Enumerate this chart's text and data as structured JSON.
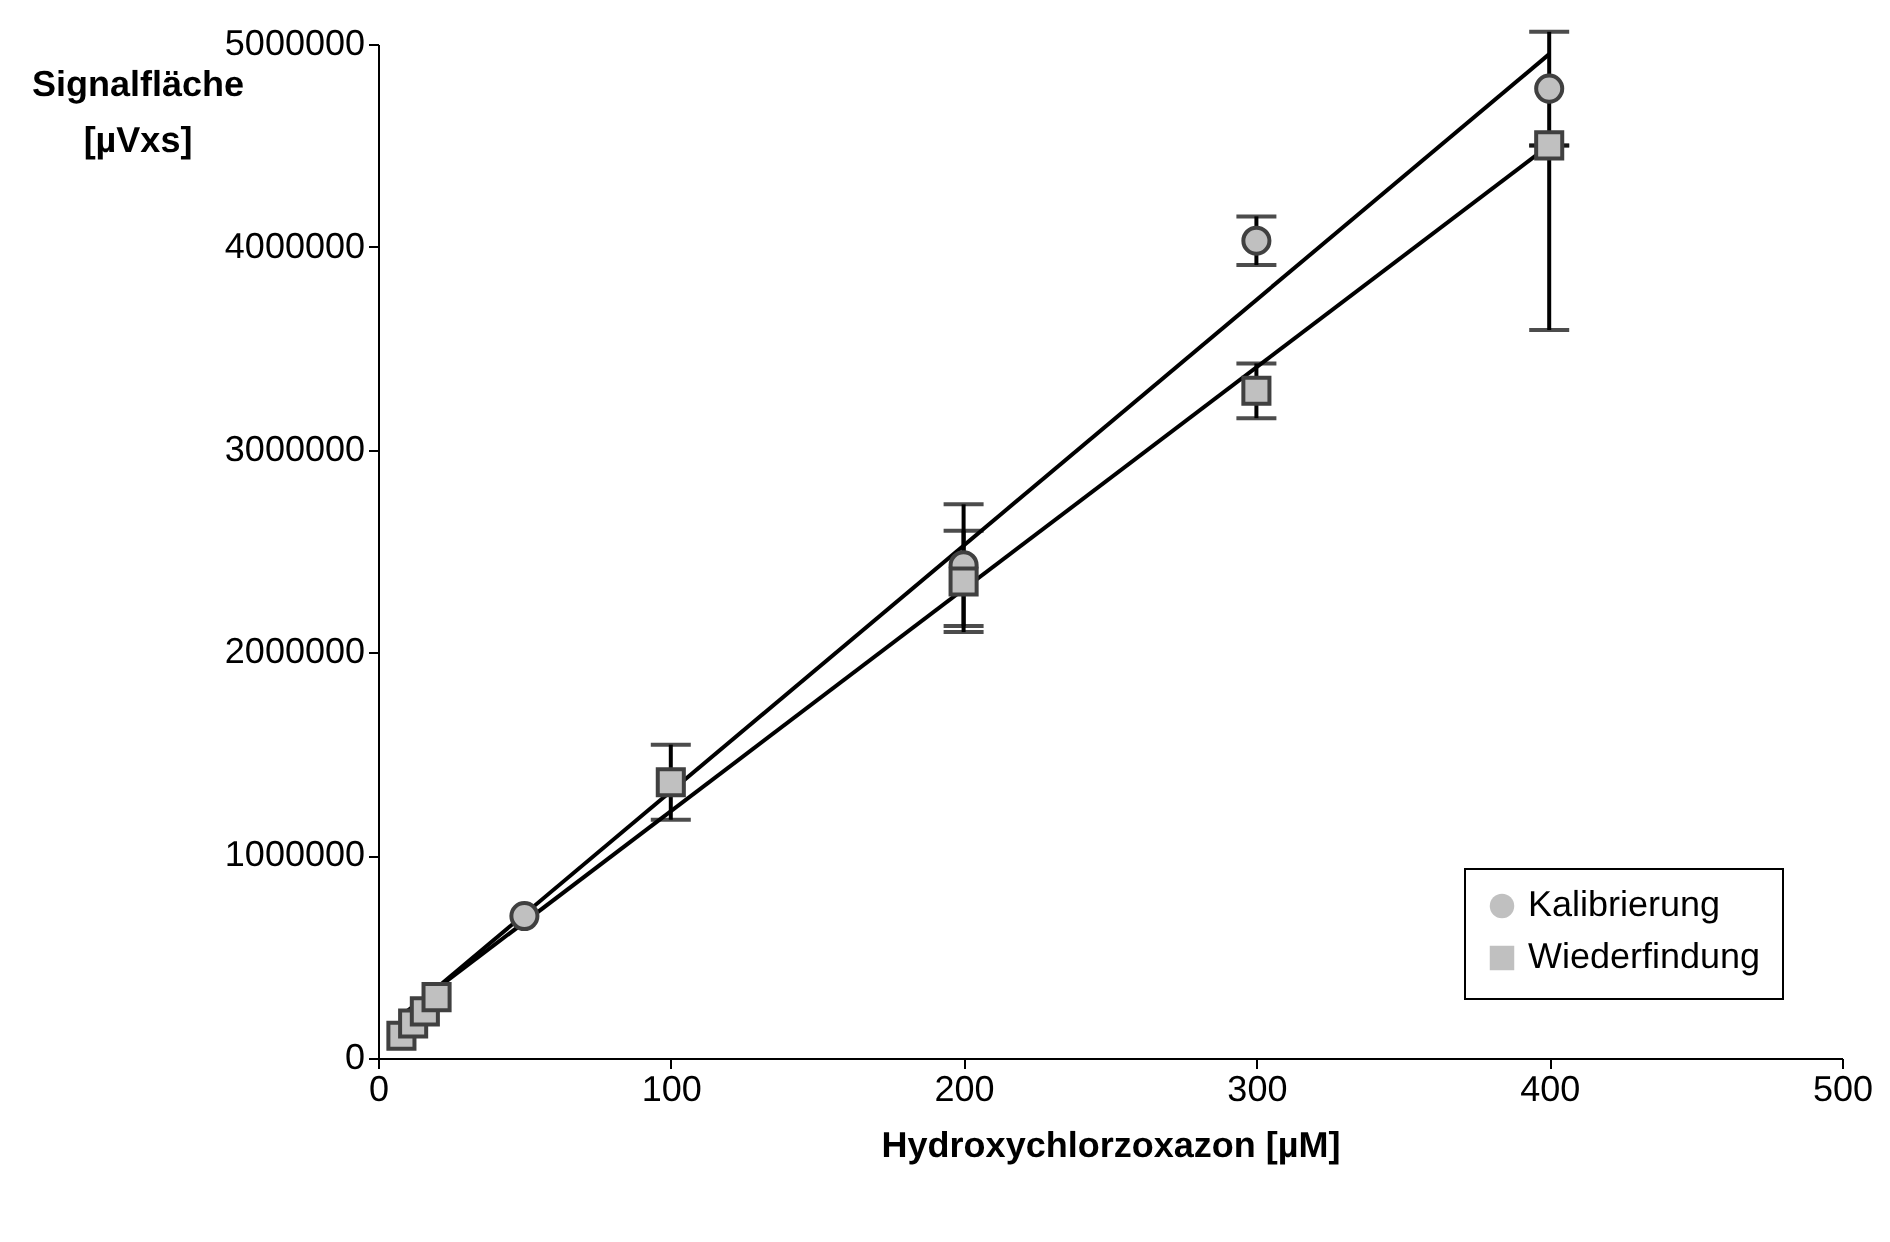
{
  "chart_data": {
    "type": "scatter",
    "xlabel": "Hydroxychlorzoxazon [µM]",
    "ylabel": "Signalfläche [µVxs]",
    "xlim": [
      0,
      500
    ],
    "xticks": [
      0,
      100,
      200,
      300,
      400,
      500
    ],
    "ylim": [
      0,
      5000000
    ],
    "yticks": [
      0,
      1000000,
      2000000,
      3000000,
      4000000,
      5000000
    ],
    "grid": false,
    "legend": "bottom right",
    "series": [
      {
        "name": "Kalibrierung",
        "marker": "circle",
        "color": "#c0c0c0",
        "x": [
          50,
          200,
          300,
          400
        ],
        "values": [
          700000,
          2430000,
          4030000,
          4780000
        ],
        "errors": [
          null,
          300000,
          120000,
          280000
        ]
      },
      {
        "name": "Wiederfindung",
        "marker": "square",
        "color": "#c0c0c0",
        "x": [
          8,
          12,
          16,
          20,
          100,
          200,
          300,
          400
        ],
        "values": [
          110000,
          170000,
          230000,
          300000,
          1360000,
          2350000,
          3290000,
          4500000
        ],
        "errors": [
          null,
          null,
          null,
          null,
          185000,
          250000,
          135000,
          [
            3590000,
            4500000
          ]
        ]
      },
      {
        "type": "line",
        "color": "#000000",
        "x": [
          8,
          400
        ],
        "values": [
          200000,
          4950000
        ]
      },
      {
        "type": "line",
        "color": "#000000",
        "x": [
          8,
          400
        ],
        "values": [
          210000,
          4500000
        ]
      }
    ]
  }
}
